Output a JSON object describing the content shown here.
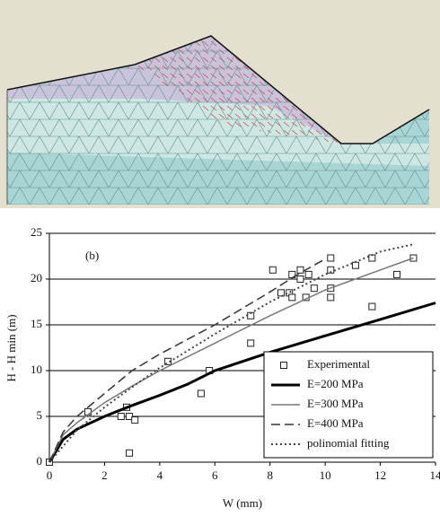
{
  "chart_data": {
    "type": "line",
    "annotation": "(b)",
    "x_label": "W (mm)",
    "y_label": "H - H min (m)",
    "xlim": [
      0,
      14
    ],
    "xticks": [
      0,
      2,
      4,
      6,
      8,
      10,
      12,
      14
    ],
    "ylim": [
      0,
      25
    ],
    "yticks": [
      0,
      5,
      10,
      15,
      20,
      25
    ],
    "grid": true,
    "legend": "lower right",
    "series": [
      {
        "name": "Experimental",
        "color": "#222222",
        "style": "markers",
        "x": [
          0,
          1.4,
          2.6,
          2.8,
          2.9,
          2.9,
          3.1,
          4.3,
          5.5,
          5.8,
          7.3,
          7.3,
          8.1,
          8.4,
          8.7,
          8.8,
          8.8,
          9.1,
          9.1,
          9.3,
          9.4,
          9.6,
          10.2,
          10.2,
          10.2,
          10.2,
          11.1,
          11.7,
          11.7,
          12.6,
          13.2
        ],
        "values": [
          0,
          5.5,
          5,
          6,
          5,
          1,
          4.6,
          11,
          7.5,
          10,
          16,
          13,
          21,
          18.5,
          18.5,
          20.5,
          18,
          21,
          20,
          18,
          20.5,
          19,
          22.3,
          21,
          19,
          18,
          21.5,
          22.3,
          17,
          20.5,
          22.3
        ]
      },
      {
        "name": "E=200 MPa",
        "color": "#000000",
        "style": "solid",
        "width": 3,
        "x": [
          0,
          0.5,
          1,
          2,
          3,
          4,
          5,
          6,
          8,
          10,
          12,
          14
        ],
        "values": [
          0,
          2.5,
          3.6,
          5,
          6.2,
          7.3,
          8.5,
          10,
          12,
          13.8,
          15.6,
          17.4
        ]
      },
      {
        "name": "E=300 MPa",
        "color": "#777777",
        "style": "solid",
        "width": 1.5,
        "x": [
          0,
          0.5,
          1,
          2,
          3,
          4,
          6,
          8,
          10,
          12,
          13.2
        ],
        "values": [
          0,
          3,
          4.3,
          6.5,
          8.3,
          10,
          13,
          16,
          18.8,
          21,
          22.3
        ]
      },
      {
        "name": "E=400 MPa",
        "color": "#333333",
        "style": "dashed",
        "width": 1.5,
        "x": [
          0,
          0.5,
          1,
          2,
          3,
          4,
          6,
          8,
          9,
          10
        ],
        "values": [
          0,
          3.3,
          5,
          7.5,
          10,
          11.8,
          15,
          18.6,
          20.5,
          22.2
        ]
      },
      {
        "name": "polinomial fitting",
        "color": "#444444",
        "style": "dotted",
        "width": 2,
        "x": [
          0,
          1,
          2,
          3,
          4,
          6,
          8,
          10,
          12,
          13.2
        ],
        "values": [
          0,
          3.5,
          6,
          8.2,
          10.3,
          14,
          17.5,
          20.5,
          23,
          23.8
        ]
      }
    ]
  }
}
